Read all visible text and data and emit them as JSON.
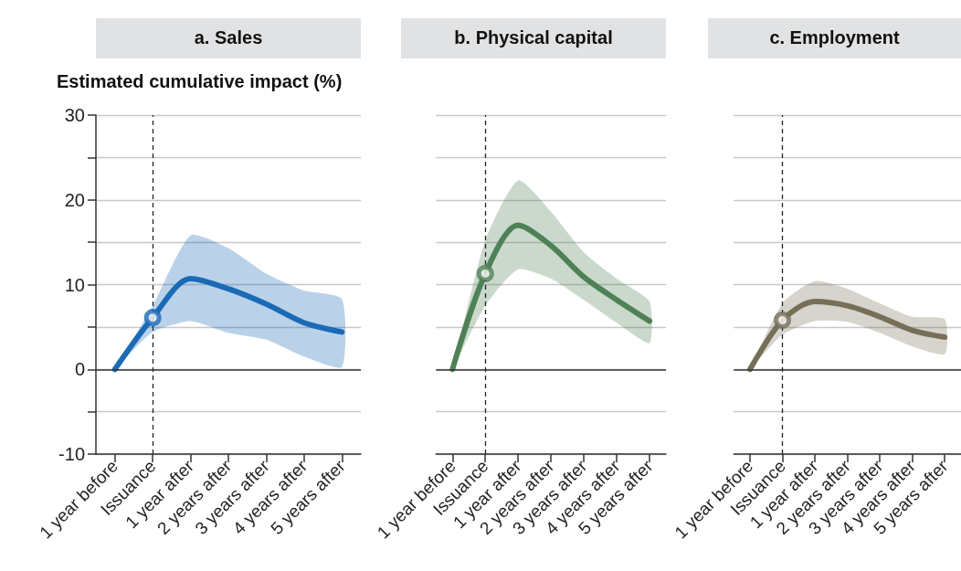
{
  "chart_data": [
    {
      "type": "line",
      "title": "a. Sales",
      "ylabel": "Estimated cumulative impact (%)",
      "categories": [
        "1 year before",
        "Issuance",
        "1 year after",
        "2 years after",
        "3 years after",
        "4 years after",
        "5 years after"
      ],
      "series": [
        {
          "color": "#1b6ab5",
          "values": [
            0,
            6.1,
            10.7,
            9.5,
            7.7,
            5.5,
            4.4
          ],
          "lower": [
            0,
            4.4,
            5.7,
            4.3,
            3.5,
            1.5,
            0.3
          ],
          "upper": [
            0,
            7.5,
            15.8,
            14.3,
            11.3,
            9.3,
            8.3
          ]
        },
        {
          "type": "scatter",
          "color": "#1b6ab5",
          "x": [
            "Issuance"
          ],
          "values": [
            6.1
          ],
          "marker": "circle"
        }
      ],
      "ylim": [
        -10,
        30
      ],
      "yticks": [
        -10,
        {
          "value": -5,
          "label": null
        },
        0,
        {
          "value": 5,
          "label": null
        },
        10,
        {
          "value": 15,
          "label": null
        },
        20,
        {
          "value": 25,
          "label": null
        },
        30
      ],
      "grid": "y",
      "marker": "none",
      "line_style": "solid",
      "ref_lines": [
        {
          "axis": "x",
          "value": "Issuance",
          "line_style": "dashed",
          "color": "#222222"
        },
        {
          "axis": "y",
          "value": 0,
          "line_style": "solid",
          "color": "#333333"
        }
      ]
    },
    {
      "type": "line",
      "title": "b. Physical capital",
      "categories": [
        "1 year before",
        "Issuance",
        "1 year after",
        "2 years after",
        "3 years after",
        "4 years after",
        "5 years after"
      ],
      "series": [
        {
          "color": "#4f8157",
          "values": [
            0,
            11.3,
            17.0,
            14.6,
            10.9,
            8.2,
            5.7
          ],
          "lower": [
            0,
            7.5,
            11.8,
            10.7,
            8.2,
            5.5,
            3.1
          ],
          "upper": [
            0,
            15.2,
            22.3,
            18.6,
            13.8,
            10.7,
            8.0
          ]
        },
        {
          "type": "scatter",
          "color": "#4f8157",
          "x": [
            "Issuance"
          ],
          "values": [
            11.3
          ],
          "marker": "circle"
        }
      ],
      "ylim": [
        -10,
        30
      ],
      "yticks": [
        -10,
        {
          "value": -5,
          "label": null
        },
        0,
        {
          "value": 5,
          "label": null
        },
        10,
        {
          "value": 15,
          "label": null
        },
        20,
        {
          "value": 25,
          "label": null
        },
        30
      ],
      "grid": "y",
      "marker": "none",
      "line_style": "solid",
      "tick_labels": "x",
      "ref_lines": [
        {
          "axis": "x",
          "value": "Issuance",
          "line_style": "dashed",
          "color": "#222222"
        },
        {
          "axis": "y",
          "value": 0,
          "line_style": "solid",
          "color": "#333333"
        }
      ]
    },
    {
      "type": "line",
      "title": "c. Employment",
      "categories": [
        "1 year before",
        "Issuance",
        "1 year after",
        "2 years after",
        "3 years after",
        "4 years after",
        "5 years after"
      ],
      "series": [
        {
          "color": "#766f58",
          "values": [
            0,
            5.8,
            8.0,
            7.5,
            6.2,
            4.6,
            3.8
          ],
          "lower": [
            0,
            4.1,
            5.7,
            5.6,
            4.3,
            2.7,
            1.8
          ],
          "upper": [
            0,
            7.8,
            10.4,
            9.5,
            7.8,
            6.2,
            5.9
          ]
        },
        {
          "type": "scatter",
          "color": "#766f58",
          "x": [
            "Issuance"
          ],
          "values": [
            5.8
          ],
          "marker": "circle"
        }
      ],
      "ylim": [
        -10,
        30
      ],
      "yticks": [
        -10,
        {
          "value": -5,
          "label": null
        },
        0,
        {
          "value": 5,
          "label": null
        },
        10,
        {
          "value": 15,
          "label": null
        },
        20,
        {
          "value": 25,
          "label": null
        },
        30
      ],
      "grid": "y",
      "marker": "none",
      "line_style": "solid",
      "tick_labels": "x",
      "ref_lines": [
        {
          "axis": "x",
          "value": "Issuance",
          "line_style": "dashed",
          "color": "#222222"
        },
        {
          "axis": "y",
          "value": 0,
          "line_style": "solid",
          "color": "#333333"
        }
      ]
    }
  ]
}
